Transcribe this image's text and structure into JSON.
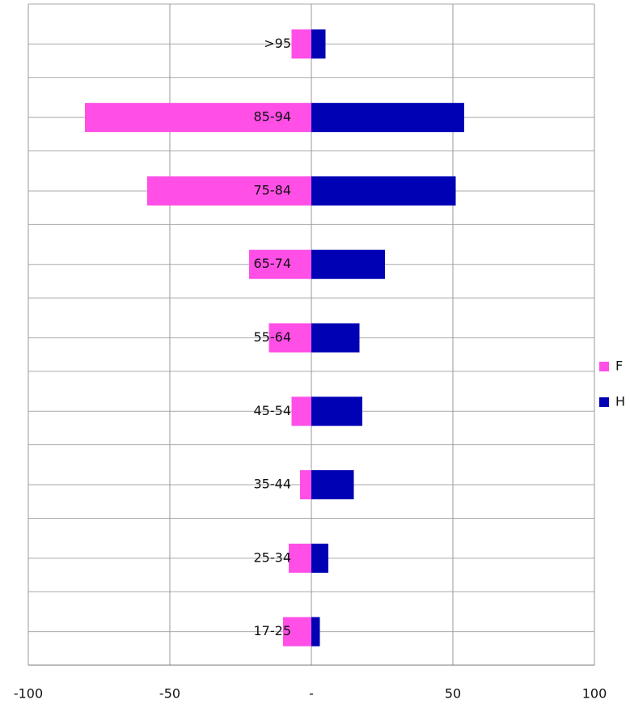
{
  "chart_data": {
    "type": "bar",
    "categories": [
      ">95",
      "85-94",
      "75-84",
      "65-74",
      "55-64",
      "45-54",
      "35-44",
      "25-34",
      "17-25"
    ],
    "series": [
      {
        "name": "F",
        "color": "#ff4fe6",
        "values": [
          -7,
          -80,
          -58,
          -22,
          -15,
          -7,
          -4,
          -8,
          -10
        ]
      },
      {
        "name": "H",
        "color": "#0000b4",
        "values": [
          5,
          54,
          51,
          26,
          17,
          18,
          15,
          6,
          3
        ]
      }
    ],
    "xlim": [
      -100,
      100
    ],
    "xticks": [
      -100,
      -50,
      {
        "value": 0,
        "label": "-"
      },
      50,
      100
    ],
    "grid": true,
    "legend": "right"
  }
}
